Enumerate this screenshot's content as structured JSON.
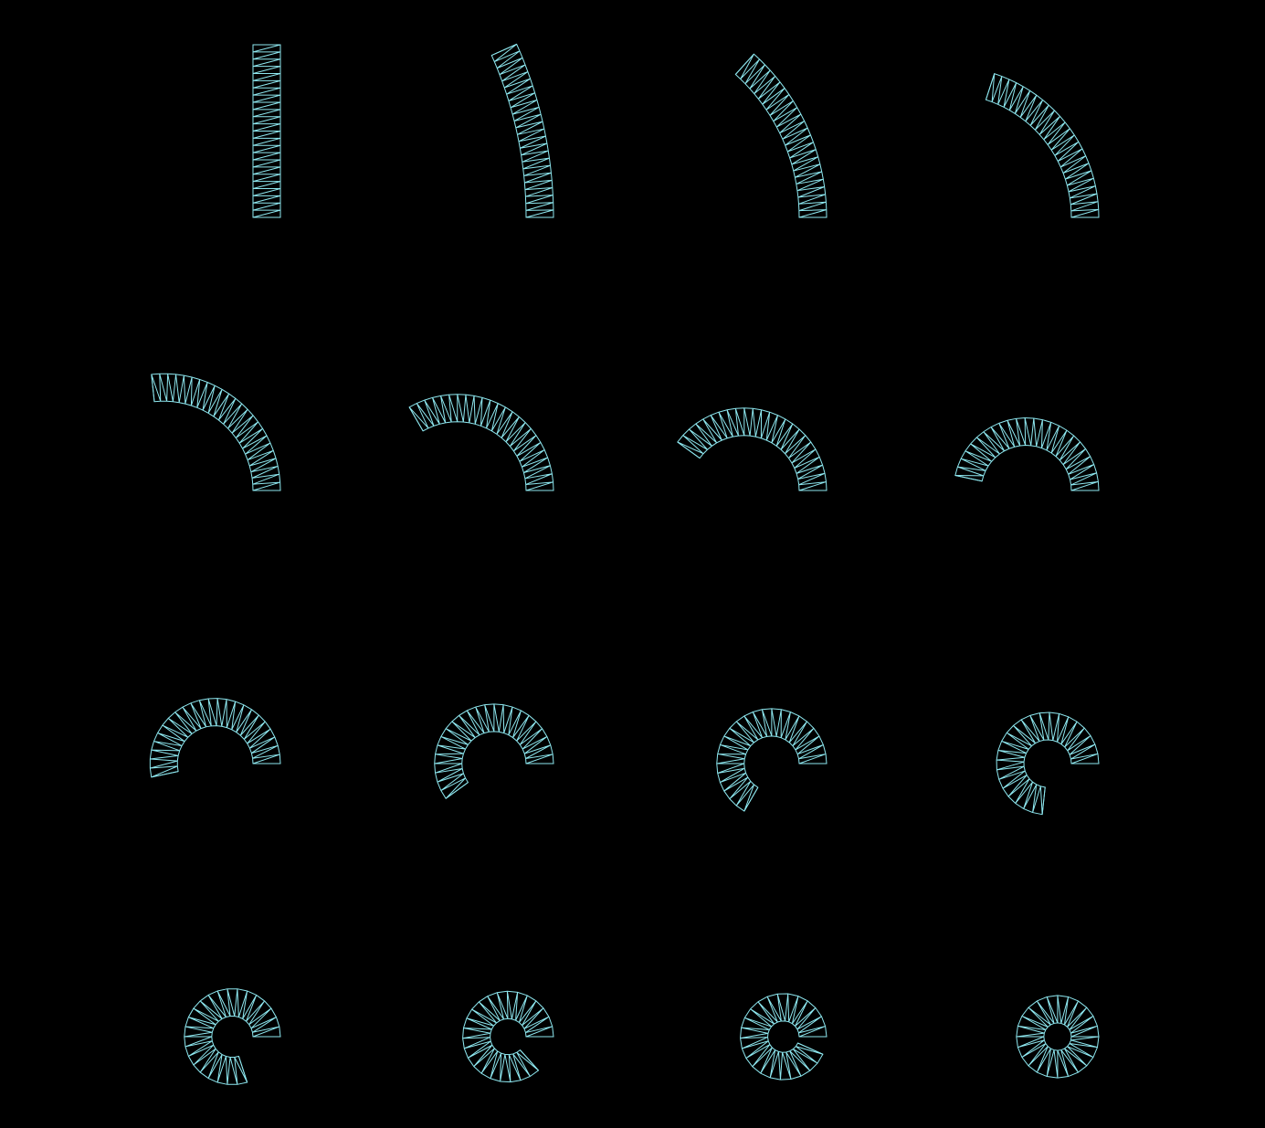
{
  "background_color": "#000000",
  "wire_color": "#8ee8f0",
  "grid": {
    "rows": 4,
    "columns": 4
  },
  "strip": {
    "segments": 24,
    "triangles_per_segment": 2
  },
  "panels": [
    {
      "bend_fraction": 0.0
    },
    {
      "bend_fraction": 0.0667
    },
    {
      "bend_fraction": 0.1333
    },
    {
      "bend_fraction": 0.2
    },
    {
      "bend_fraction": 0.2667
    },
    {
      "bend_fraction": 0.3333
    },
    {
      "bend_fraction": 0.4
    },
    {
      "bend_fraction": 0.4667
    },
    {
      "bend_fraction": 0.5333
    },
    {
      "bend_fraction": 0.6
    },
    {
      "bend_fraction": 0.6667
    },
    {
      "bend_fraction": 0.7333
    },
    {
      "bend_fraction": 0.8
    },
    {
      "bend_fraction": 0.8667
    },
    {
      "bend_fraction": 0.9333
    },
    {
      "bend_fraction": 1.0
    }
  ]
}
